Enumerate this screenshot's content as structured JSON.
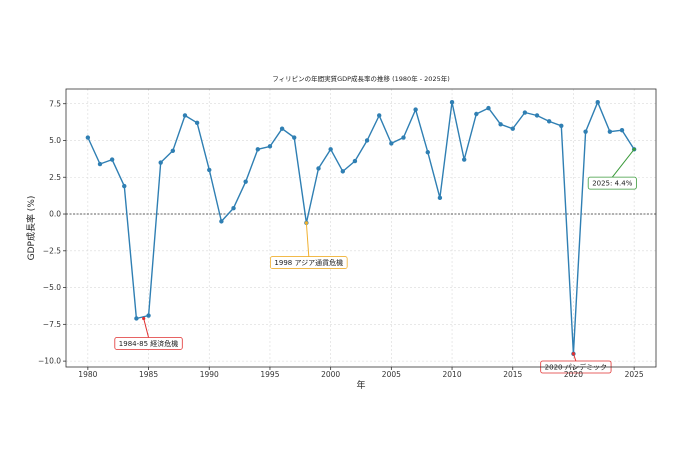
{
  "chart_data": {
    "type": "line",
    "title": "フィリピンの年間実質GDP成長率の推移 (1980年 - 2025年)",
    "xlabel": "年",
    "ylabel": "GDP成長率 (%)",
    "xlim": [
      1978.2,
      2026.8
    ],
    "ylim": [
      -10.4,
      8.5
    ],
    "xticks": [
      1980,
      1985,
      1990,
      1995,
      2000,
      2005,
      2010,
      2015,
      2020,
      2025
    ],
    "yticks": [
      -10.0,
      -7.5,
      -5.0,
      -2.5,
      0.0,
      2.5,
      5.0,
      7.5
    ],
    "ytick_labels": [
      "−10.0",
      "−7.5",
      "−5.0",
      "−2.5",
      "0.0",
      "2.5",
      "5.0",
      "7.5"
    ],
    "grid": true,
    "reference_line": 0,
    "series": [
      {
        "color": "#2f7fb3",
        "points": [
          [
            1980,
            5.2
          ],
          [
            1981,
            3.4
          ],
          [
            1982,
            3.7
          ],
          [
            1983,
            1.9
          ],
          [
            1984,
            -7.1
          ],
          [
            1985,
            -6.9
          ],
          [
            1986,
            3.5
          ],
          [
            1987,
            4.3
          ],
          [
            1988,
            6.7
          ],
          [
            1989,
            6.2
          ],
          [
            1990,
            3.0
          ],
          [
            1991,
            -0.5
          ],
          [
            1992,
            0.4
          ],
          [
            1993,
            2.2
          ],
          [
            1994,
            4.4
          ],
          [
            1995,
            4.6
          ],
          [
            1996,
            5.8
          ],
          [
            1997,
            5.2
          ],
          [
            1998,
            -0.6
          ],
          [
            1999,
            3.1
          ],
          [
            2000,
            4.4
          ],
          [
            2001,
            2.9
          ],
          [
            2002,
            3.6
          ],
          [
            2003,
            5.0
          ],
          [
            2004,
            6.7
          ],
          [
            2005,
            4.8
          ],
          [
            2006,
            5.2
          ],
          [
            2007,
            7.1
          ],
          [
            2008,
            4.2
          ],
          [
            2009,
            1.1
          ],
          [
            2010,
            7.6
          ],
          [
            2011,
            3.7
          ],
          [
            2012,
            6.8
          ],
          [
            2013,
            7.2
          ],
          [
            2014,
            6.1
          ],
          [
            2015,
            5.8
          ],
          [
            2016,
            6.9
          ],
          [
            2017,
            6.7
          ],
          [
            2018,
            6.3
          ],
          [
            2019,
            6.0
          ],
          [
            2020,
            -9.5
          ],
          [
            2021,
            5.6
          ],
          [
            2022,
            7.6
          ],
          [
            2023,
            5.6
          ],
          [
            2024,
            5.7
          ],
          [
            2025,
            4.4
          ]
        ]
      }
    ],
    "annotations": [
      {
        "text": "1984-85 経済危機",
        "point": [
          1984.6,
          -7.1
        ],
        "text_pos": [
          1985.0,
          -8.8
        ],
        "color": "#e03030"
      },
      {
        "text": "1998 アジア通貨危機",
        "point": [
          1998,
          -0.6
        ],
        "text_pos": [
          1998.2,
          -3.3
        ],
        "color": "#f0b030"
      },
      {
        "text": "2020 パンデミック",
        "point": [
          2020,
          -9.5
        ],
        "text_pos": [
          2020.2,
          -10.4
        ],
        "color": "#e03030"
      },
      {
        "text": "2025: 4.4%",
        "point": [
          2025,
          4.4
        ],
        "text_pos": [
          2023.2,
          2.1
        ],
        "color": "#3a9a3a"
      }
    ]
  }
}
